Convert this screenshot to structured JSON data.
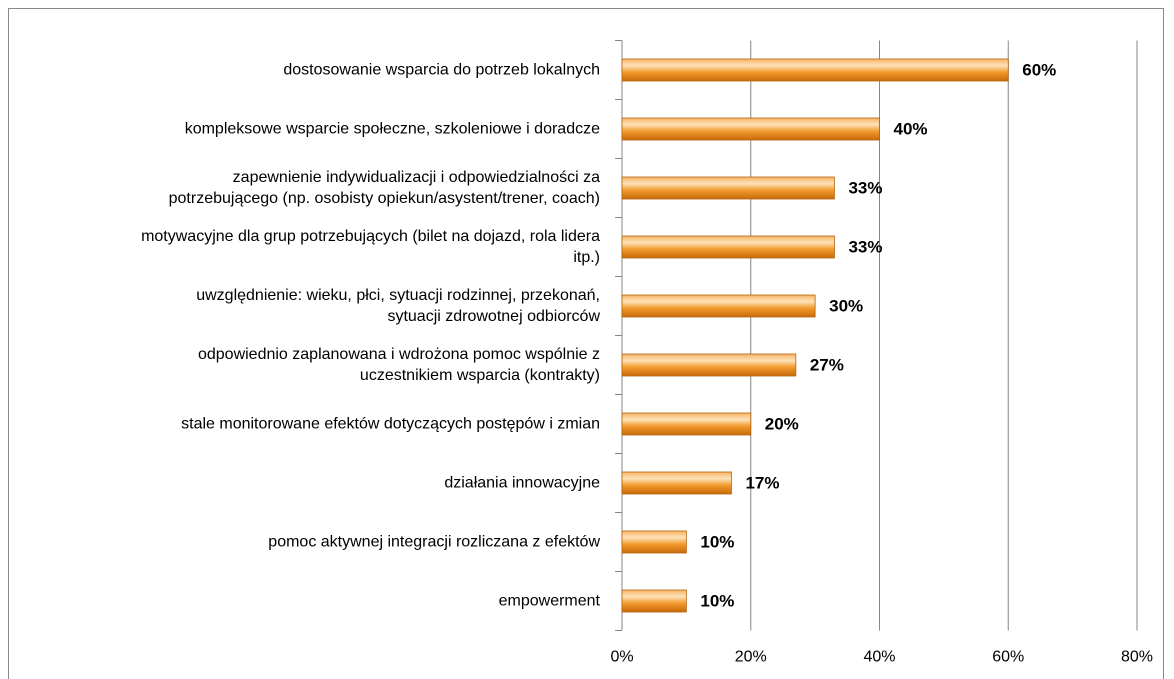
{
  "chart_data": {
    "type": "bar",
    "orientation": "horizontal",
    "categories": [
      "dostosowanie wsparcia do potrzeb lokalnych",
      "kompleksowe wsparcie społeczne, szkoleniowe i doradcze",
      "zapewnienie indywidualizacji i odpowiedzialności za\npotrzebującego (np. osobisty opiekun/asystent/trener, coach)",
      "motywacyjne dla grup potrzebujących (bilet na dojazd, rola lidera\nitp.)",
      "uwzględnienie:  wieku, płci, sytuacji rodzinnej, przekonań,\nsytuacji zdrowotnej odbiorców",
      "odpowiednio zaplanowana i wdrożona pomoc wspólnie z\nuczestnikiem wsparcia (kontrakty)",
      "stale monitorowane efektów dotyczących postępów i zmian",
      "działania innowacyjne",
      "pomoc aktywnej integracji rozliczana z efektów",
      "empowerment"
    ],
    "values": [
      60,
      40,
      33,
      33,
      30,
      27,
      20,
      17,
      10,
      10
    ],
    "value_labels": [
      "60%",
      "40%",
      "33%",
      "33%",
      "30%",
      "27%",
      "20%",
      "17%",
      "10%",
      "10%"
    ],
    "color": "#f29a2e",
    "xlim": [
      0,
      80
    ],
    "xticks": [
      {
        "value": 0,
        "label": "0%"
      },
      {
        "value": 20,
        "label": "20%"
      },
      {
        "value": 40,
        "label": "40%"
      },
      {
        "value": 60,
        "label": "60%"
      },
      {
        "value": 80,
        "label": "80%"
      }
    ],
    "grid": true
  }
}
